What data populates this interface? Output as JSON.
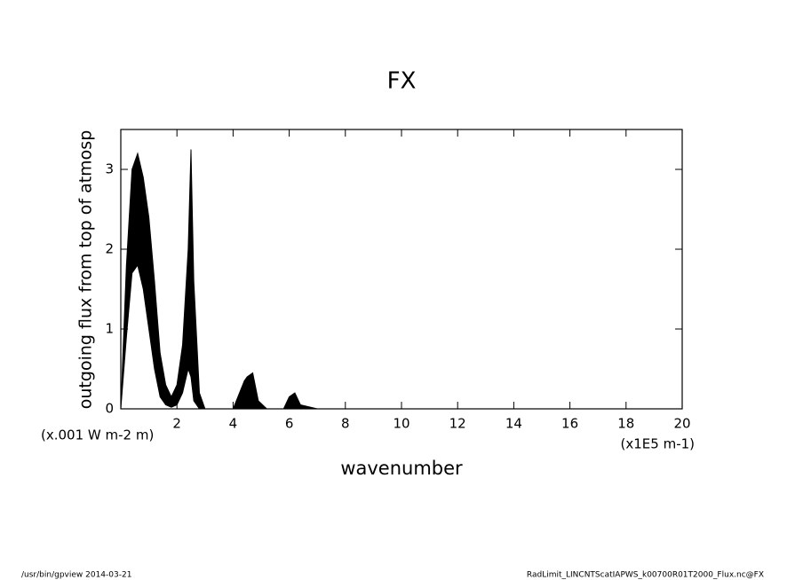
{
  "chart_data": {
    "type": "band",
    "title": "FX",
    "y_label": "outgoing flux from top of atmosp",
    "y_unit": "(x.001 W m-2 m)",
    "x_label": "wavenumber",
    "x_unit": "(x1E5 m-1)",
    "x": [
      0,
      0.2,
      0.4,
      0.6,
      0.8,
      1.0,
      1.2,
      1.4,
      1.6,
      1.8,
      2.0,
      2.2,
      2.4,
      2.5,
      2.6,
      2.8,
      3.0,
      3.5,
      4.0,
      4.4,
      4.5,
      4.7,
      4.9,
      5.2,
      5.8,
      6.0,
      6.2,
      6.4,
      7,
      20
    ],
    "series": [
      {
        "color": "#000000",
        "values": [
          0,
          1.8,
          3.0,
          3.2,
          2.9,
          2.4,
          1.6,
          0.7,
          0.3,
          0.15,
          0.3,
          0.8,
          2.0,
          3.25,
          1.6,
          0.2,
          0,
          0,
          0,
          0.35,
          0.4,
          0.45,
          0.1,
          0,
          0,
          0.15,
          0.2,
          0.05,
          0,
          0
        ]
      },
      {
        "color": "#000000",
        "values": [
          0,
          0.9,
          1.7,
          1.8,
          1.5,
          1.0,
          0.5,
          0.15,
          0.05,
          0.02,
          0.05,
          0.2,
          0.5,
          0.4,
          0.1,
          0,
          0,
          0,
          0,
          0,
          0,
          0,
          0,
          0,
          0,
          0,
          0,
          0,
          0,
          0
        ]
      }
    ],
    "xlim": [
      0,
      20
    ],
    "xticks": [
      2,
      4,
      6,
      8,
      10,
      12,
      14,
      16,
      18,
      20
    ],
    "ylim": [
      0,
      3.5
    ],
    "yticks": [
      0,
      1,
      2,
      3
    ],
    "footer_left": "/usr/bin/gpview   2014-03-21",
    "footer_right": "RadLimit_LINCNTScatIAPWS_k00700R01T2000_Flux.nc@FX"
  }
}
